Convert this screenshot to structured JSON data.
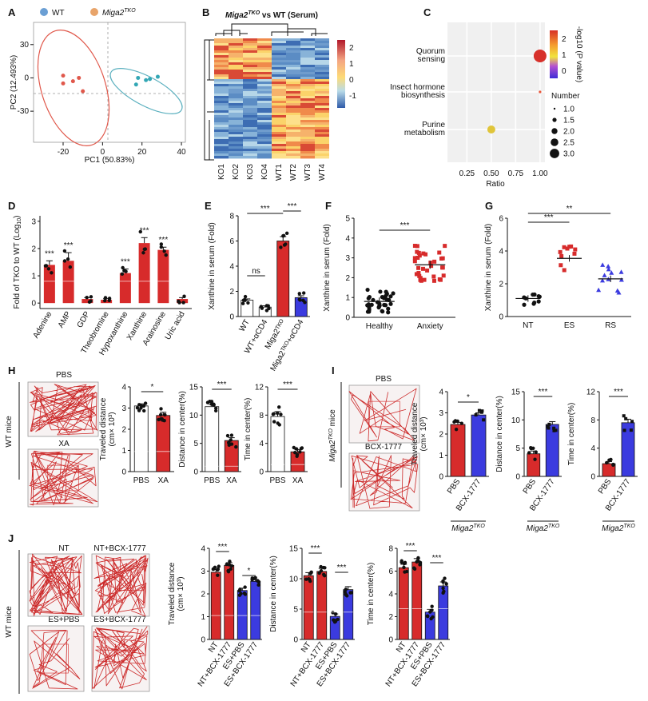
{
  "colors": {
    "wt_blue": "#6b9fd4",
    "tko_orange": "#e8a46a",
    "red": "#d72b2b",
    "blue_bar": "#3b3bdf",
    "dark_red_text": "#a51d1d",
    "maze_line": "#cc2a2a"
  },
  "panel_letters": [
    "A",
    "B",
    "C",
    "D",
    "E",
    "F",
    "G",
    "H",
    "I",
    "J"
  ],
  "A": {
    "legend": [
      {
        "label": "WT"
      },
      {
        "label": "Miga2",
        "sup": "TKO"
      }
    ],
    "xlabel": "PC1 (50.83%)",
    "ylabel": "PC2 (12.493%)",
    "xticks": [
      "-20",
      "0",
      "20",
      "40"
    ],
    "yticks": [
      "30",
      "0",
      "-30"
    ],
    "wt_points": [
      [
        18,
        0
      ],
      [
        24,
        -1
      ],
      [
        22,
        -2
      ],
      [
        28,
        1
      ],
      [
        17,
        -6
      ]
    ],
    "tko_points": [
      [
        -20,
        2
      ],
      [
        -12,
        0
      ],
      [
        -15,
        -3
      ],
      [
        -20,
        -5
      ],
      [
        -10,
        -12
      ]
    ],
    "xlim": [
      -35,
      42
    ],
    "ylim": [
      -58,
      50
    ]
  },
  "B": {
    "title_pre": "Miga2",
    "title_sup": "TKO",
    "title_post": " vs WT (Serum)",
    "columns": [
      "KO1",
      "KO2",
      "KO3",
      "KO4",
      "WT1",
      "WT2",
      "WT3",
      "WT4"
    ],
    "colorbar_ticks": [
      "2",
      "1",
      "0",
      "-1"
    ]
  },
  "C": {
    "pathways": [
      {
        "label_lines": [
          "Quorum",
          "sensing"
        ],
        "ratio": 1.0,
        "neglog10p": 2.3,
        "number": 3.0,
        "highlight": false
      },
      {
        "label_lines": [
          "Insect hormone",
          "biosynthesis"
        ],
        "ratio": 1.0,
        "neglog10p": 1.8,
        "number": 1.0,
        "highlight": false
      },
      {
        "label_lines": [
          "Purine",
          "metabolism"
        ],
        "ratio": 0.5,
        "neglog10p": 1.0,
        "number": 2.0,
        "highlight": true
      }
    ],
    "xticks": [
      "0.25",
      "0.50",
      "0.75",
      "1.00"
    ],
    "xlabel": "Ratio",
    "colorbar_title": "-log10 (P value)",
    "colorbar_ticks": [
      "2",
      "1",
      "0"
    ],
    "size_legend_title": "Number",
    "size_legend": [
      "1.0",
      "1.5",
      "2.0",
      "2.5",
      "3.0"
    ]
  },
  "chart_data": [
    {
      "panel": "D",
      "type": "bar",
      "ylabel_main": "Fold of TKO to WT (Log",
      "ylabel_sub": "10",
      "ylabel_end": ")",
      "ylim": [
        -0.2,
        3.2
      ],
      "yticks": [
        "0",
        "1",
        "2",
        "3"
      ],
      "categories": [
        "Adenine",
        "AMP",
        "GDP",
        "Theobromine",
        "Hypoxanthine",
        "Xanthine",
        "Arainosine",
        "Uric acid"
      ],
      "highlight": [
        true,
        true,
        false,
        false,
        true,
        true,
        true,
        false
      ],
      "values": [
        1.4,
        1.55,
        0.15,
        0.12,
        1.1,
        2.2,
        1.95,
        0.15
      ],
      "errors": [
        0.15,
        0.3,
        0.05,
        0.05,
        0.15,
        0.2,
        0.1,
        0.05
      ],
      "sig": [
        "***",
        "***",
        "",
        "",
        "***",
        "***",
        "***",
        ""
      ]
    },
    {
      "panel": "E",
      "type": "bar",
      "ylabel": "Xanthine in serum (Fold)",
      "ylim": [
        0,
        8
      ],
      "yticks": [
        "0",
        "2",
        "4",
        "6",
        "8"
      ],
      "categories": [
        "WT",
        "WT+αCD4",
        "Miga2TKO",
        "Miga2TKO+αCD4"
      ],
      "values": [
        1.3,
        0.75,
        6.0,
        1.5
      ],
      "errors": [
        0.1,
        0.1,
        0.35,
        0.15
      ],
      "comparisons": [
        {
          "a": 0,
          "b": 1,
          "label": "ns"
        },
        {
          "a": 0,
          "b": 2,
          "label": "***"
        },
        {
          "a": 2,
          "b": 3,
          "label": "***"
        }
      ]
    },
    {
      "panel": "F",
      "type": "scatter",
      "ylabel": "Xanthine in serum (Fold)",
      "ylim": [
        0,
        5
      ],
      "yticks": [
        "0",
        "1",
        "2",
        "3",
        "4",
        "5"
      ],
      "categories": [
        "Healthy",
        "Anxiety"
      ],
      "means": [
        0.8,
        2.65
      ],
      "comparisons": [
        {
          "a": 0,
          "b": 1,
          "label": "***"
        }
      ]
    },
    {
      "panel": "G",
      "type": "scatter",
      "ylabel": "Xanthine in serum (Fold)",
      "ylim": [
        0,
        6
      ],
      "yticks": [
        "0",
        "2",
        "4",
        "6"
      ],
      "categories": [
        "NT",
        "ES",
        "RS"
      ],
      "means": [
        1.1,
        3.55,
        2.3
      ],
      "comparisons": [
        {
          "a": 0,
          "b": 1,
          "label": "***"
        },
        {
          "a": 0,
          "b": 2,
          "label": "**"
        }
      ]
    },
    {
      "panel": "H1",
      "type": "bar",
      "ylabel": "Traveled distance",
      "ylabel2": "(cm× 10³)",
      "ylim": [
        0,
        4
      ],
      "yticks": [
        "0",
        "1",
        "2",
        "3",
        "4"
      ],
      "categories": [
        "PBS",
        "XA"
      ],
      "values": [
        3.1,
        2.65
      ],
      "errors": [
        0.1,
        0.15
      ],
      "comparisons": [
        {
          "a": 0,
          "b": 1,
          "label": "*"
        }
      ]
    },
    {
      "panel": "H2",
      "type": "bar",
      "ylabel": "Distance in center(%)",
      "ylim": [
        0,
        15
      ],
      "yticks": [
        "0",
        "5",
        "10",
        "15"
      ],
      "categories": [
        "PBS",
        "XA"
      ],
      "values": [
        11.5,
        5.5
      ],
      "errors": [
        0.4,
        0.5
      ],
      "comparisons": [
        {
          "a": 0,
          "b": 1,
          "label": "***"
        }
      ]
    },
    {
      "panel": "H3",
      "type": "bar",
      "ylabel": "Time in center(%)",
      "ylim": [
        0,
        12
      ],
      "yticks": [
        "0",
        "4",
        "8",
        "12"
      ],
      "categories": [
        "PBS",
        "XA"
      ],
      "values": [
        7.8,
        2.8
      ],
      "errors": [
        0.7,
        0.3
      ],
      "comparisons": [
        {
          "a": 0,
          "b": 1,
          "label": "***"
        }
      ]
    },
    {
      "panel": "I1",
      "type": "bar",
      "ylabel": "Traveled distance",
      "ylabel2": "(cm× 10³)",
      "ylim": [
        0,
        4
      ],
      "yticks": [
        "0",
        "1",
        "2",
        "3",
        "4"
      ],
      "categories": [
        "PBS",
        "BCX-1777"
      ],
      "values": [
        2.45,
        2.9
      ],
      "errors": [
        0.1,
        0.1
      ],
      "group": "Miga2TKO",
      "comparisons": [
        {
          "a": 0,
          "b": 1,
          "label": "*"
        }
      ]
    },
    {
      "panel": "I2",
      "type": "bar",
      "ylabel": "Distance in center(%)",
      "ylim": [
        0,
        15
      ],
      "yticks": [
        "0",
        "5",
        "10",
        "15"
      ],
      "categories": [
        "PBS",
        "BCX-1777"
      ],
      "values": [
        4.0,
        9.2
      ],
      "errors": [
        0.5,
        0.5
      ],
      "group": "Miga2TKO",
      "comparisons": [
        {
          "a": 0,
          "b": 1,
          "label": "***"
        }
      ]
    },
    {
      "panel": "I3",
      "type": "bar",
      "ylabel": "Time in center(%)",
      "ylim": [
        0,
        12
      ],
      "yticks": [
        "0",
        "4",
        "8",
        "12"
      ],
      "categories": [
        "PBS",
        "BCX-1777"
      ],
      "values": [
        1.8,
        7.6
      ],
      "errors": [
        0.3,
        0.5
      ],
      "group": "Miga2TKO",
      "comparisons": [
        {
          "a": 0,
          "b": 1,
          "label": "***"
        }
      ]
    },
    {
      "panel": "J1",
      "type": "bar",
      "ylabel": "Traveled distance",
      "ylabel2": "(cm× 10³)",
      "ylim": [
        0,
        4
      ],
      "yticks": [
        "0",
        "1",
        "2",
        "3",
        "4"
      ],
      "categories": [
        "NT",
        "NT+BCX-1777",
        "ES+PBS",
        "ES+BCX-1777"
      ],
      "values": [
        2.95,
        3.25,
        2.15,
        2.55
      ],
      "errors": [
        0.12,
        0.12,
        0.1,
        0.08
      ],
      "comparisons": [
        {
          "a": 0,
          "b": 1,
          "label": "***"
        },
        {
          "a": 2,
          "b": 3,
          "label": "*"
        }
      ]
    },
    {
      "panel": "J2",
      "type": "bar",
      "ylabel": "Distance in center(%)",
      "ylim": [
        0,
        15
      ],
      "yticks": [
        "0",
        "5",
        "10",
        "15"
      ],
      "categories": [
        "NT",
        "NT+BCX-1777",
        "ES+PBS",
        "ES+BCX-1777"
      ],
      "values": [
        10.5,
        11.2,
        3.8,
        8.2
      ],
      "errors": [
        0.5,
        0.5,
        0.4,
        0.5
      ],
      "comparisons": [
        {
          "a": 0,
          "b": 1,
          "label": "***"
        },
        {
          "a": 2,
          "b": 3,
          "label": "***"
        }
      ]
    },
    {
      "panel": "J3",
      "type": "bar",
      "ylabel": "Time in center(%)",
      "ylim": [
        0,
        8
      ],
      "yticks": [
        "0",
        "2",
        "4",
        "6",
        "8"
      ],
      "categories": [
        "NT",
        "NT+BCX-1777",
        "ES+PBS",
        "ES+BCX-1777"
      ],
      "values": [
        6.3,
        6.8,
        2.4,
        4.7
      ],
      "errors": [
        0.3,
        0.3,
        0.25,
        0.35
      ],
      "comparisons": [
        {
          "a": 0,
          "b": 1,
          "label": "***"
        },
        {
          "a": 2,
          "b": 3,
          "label": "***"
        }
      ]
    }
  ],
  "H": {
    "side_label": "WT mice",
    "maze_labels": [
      "PBS",
      "XA"
    ]
  },
  "I": {
    "side_label_pre": "Miga2",
    "side_label_sup": "TKO",
    "side_label_post": " mice",
    "maze_labels": [
      "PBS",
      "BCX-1777"
    ],
    "group_label_pre": "Miga2",
    "group_label_sup": "TKO"
  },
  "J": {
    "side_label": "WT mice",
    "maze_labels": [
      "NT",
      "NT+BCX-1777",
      "ES+PBS",
      "ES+BCX-1777"
    ]
  }
}
